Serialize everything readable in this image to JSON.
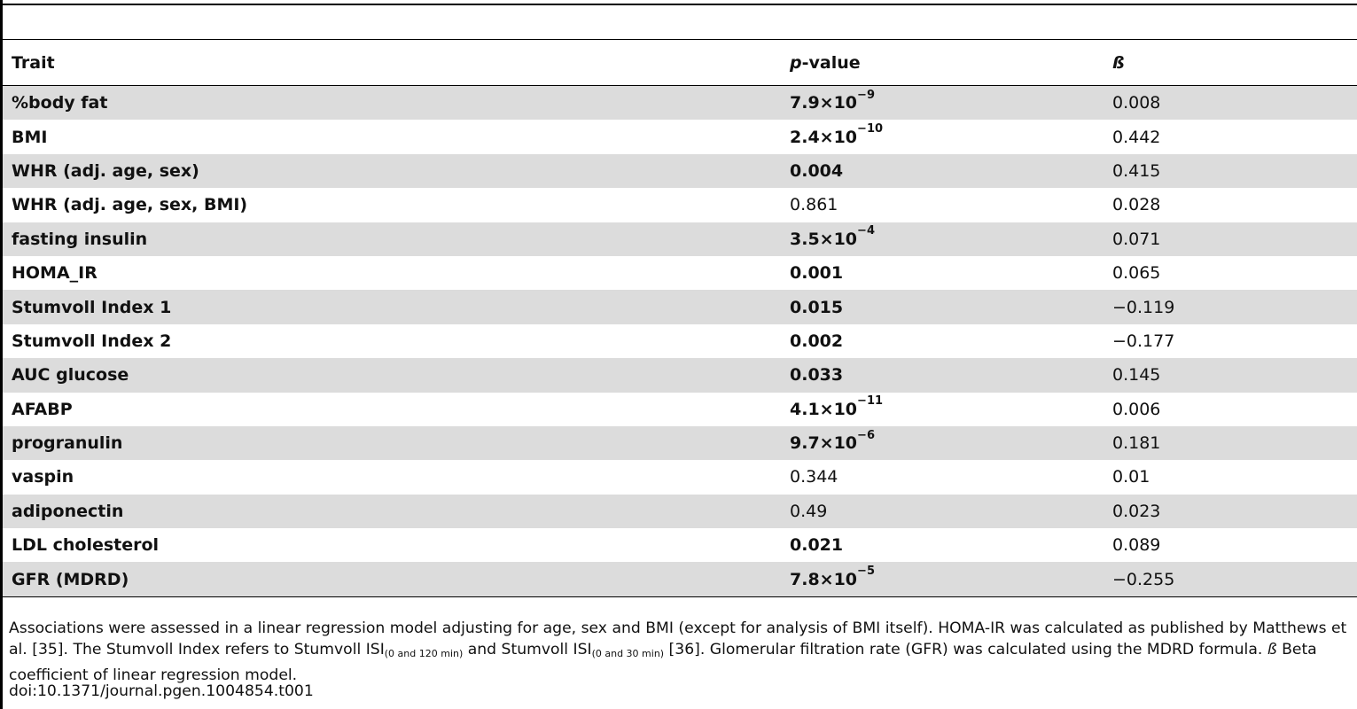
{
  "table": {
    "headers": {
      "trait": "Trait",
      "pvalue_italic": "p",
      "pvalue_rest": "-value",
      "beta": "ß"
    },
    "rows": [
      {
        "trait": "%body fat",
        "p_mant": "7.9",
        "p_exp": "−9",
        "p_bold": true,
        "beta": "0.008"
      },
      {
        "trait": "BMI",
        "p_mant": "2.4",
        "p_exp": "−10",
        "p_bold": true,
        "beta": "0.442"
      },
      {
        "trait": "WHR (adj. age, sex)",
        "p": "0.004",
        "p_bold": true,
        "beta": "0.415"
      },
      {
        "trait": "WHR (adj. age, sex, BMI)",
        "p": "0.861",
        "p_bold": false,
        "beta": "0.028"
      },
      {
        "trait": "fasting insulin",
        "p_mant": "3.5",
        "p_exp": "−4",
        "p_bold": true,
        "beta": "0.071"
      },
      {
        "trait": "HOMA_IR",
        "p": "0.001",
        "p_bold": true,
        "beta": "0.065"
      },
      {
        "trait": "Stumvoll Index 1",
        "p": "0.015",
        "p_bold": true,
        "beta": "−0.119"
      },
      {
        "trait": "Stumvoll Index 2",
        "p": "0.002",
        "p_bold": true,
        "beta": "−0.177"
      },
      {
        "trait": "AUC glucose",
        "p": "0.033",
        "p_bold": true,
        "beta": "0.145"
      },
      {
        "trait": "AFABP",
        "p_mant": "4.1",
        "p_exp": "−11",
        "p_bold": true,
        "beta": "0.006"
      },
      {
        "trait": "progranulin",
        "p_mant": "9.7",
        "p_exp": "−6",
        "p_bold": true,
        "beta": "0.181"
      },
      {
        "trait": "vaspin",
        "p": "0.344",
        "p_bold": false,
        "beta": "0.01"
      },
      {
        "trait": "adiponectin",
        "p": "0.49",
        "p_bold": false,
        "beta": "0.023"
      },
      {
        "trait": "LDL cholesterol",
        "p": "0.021",
        "p_bold": true,
        "beta": "0.089"
      },
      {
        "trait": "GFR (MDRD)",
        "p_mant": "7.8",
        "p_exp": "−5",
        "p_bold": true,
        "beta": "−0.255"
      }
    ],
    "times_symbol": "×10"
  },
  "footnote": {
    "part1": "Associations were assessed in a linear regression model adjusting for age, sex and BMI (except for analysis of BMI itself). HOMA-IR was calculated as published by Matthews et al. [35]. The Stumvoll Index refers to Stumvoll ISI",
    "sub1": "(0 and 120 min)",
    "part2": " and Stumvoll ISI",
    "sub2": "(0 and 30 min)",
    "part3": " [36]. Glomerular filtration rate (GFR) was calculated using the MDRD formula. ",
    "beta_symbol": "ß",
    "part4": " Beta coefficient of linear regression model."
  },
  "doi": "doi:10.1371/journal.pgen.1004854.t001"
}
